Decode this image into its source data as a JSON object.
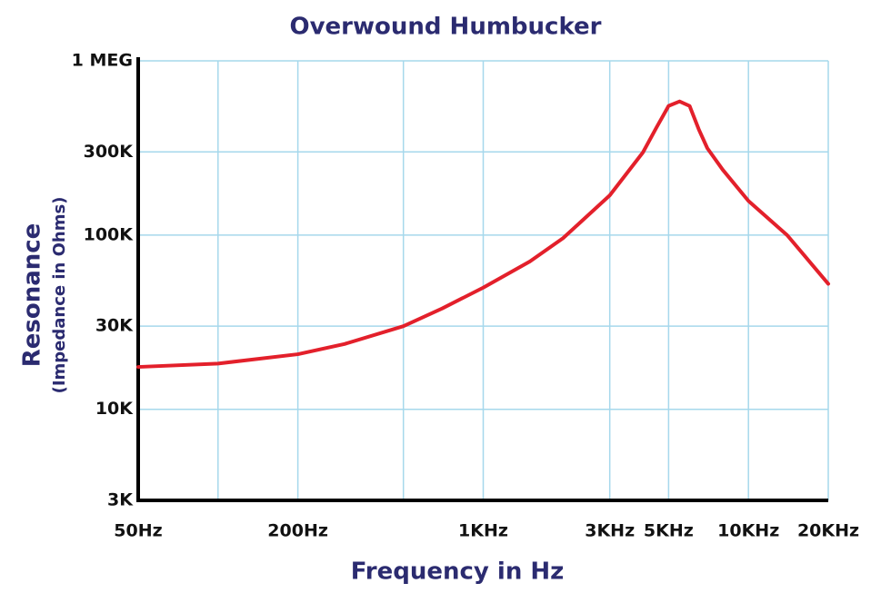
{
  "chart_data": {
    "type": "line",
    "title": "Overwound Humbucker",
    "x_label": "Frequency in Hz",
    "y_label": "Resonance",
    "y_sublabel": "(Impedance in Ohms)",
    "x_log": true,
    "y_log": true,
    "grid": true,
    "xlim": [
      50,
      20000
    ],
    "ylim": [
      3000,
      1000000
    ],
    "xticks": [
      {
        "value": 50,
        "label": "50Hz"
      },
      {
        "value": 200,
        "label": "200Hz"
      },
      {
        "value": 1000,
        "label": "1KHz"
      },
      {
        "value": 3000,
        "label": "3KHz"
      },
      {
        "value": 5000,
        "label": "5KHz"
      },
      {
        "value": 10000,
        "label": "10KHz"
      },
      {
        "value": 20000,
        "label": "20KHz"
      }
    ],
    "xminorticks": [
      100,
      500
    ],
    "yticks": [
      {
        "value": 3000,
        "label": "3K"
      },
      {
        "value": 10000,
        "label": "10K"
      },
      {
        "value": 30000,
        "label": "30K"
      },
      {
        "value": 100000,
        "label": "100K"
      },
      {
        "value": 300000,
        "label": "300K"
      },
      {
        "value": 1000000,
        "label": "1 MEG"
      }
    ],
    "x": [
      50,
      100,
      200,
      300,
      500,
      700,
      1000,
      1500,
      2000,
      3000,
      4000,
      4500,
      5000,
      5500,
      6000,
      6500,
      7000,
      8000,
      10000,
      14000,
      20000
    ],
    "series": [
      {
        "color": "#e3202b",
        "values": [
          17500,
          18300,
          20700,
          23700,
          30000,
          37900,
          49900,
          70600,
          96000,
          169000,
          298000,
          414000,
          551000,
          585000,
          551000,
          404000,
          315000,
          237000,
          157000,
          99800,
          52500
        ]
      }
    ]
  }
}
